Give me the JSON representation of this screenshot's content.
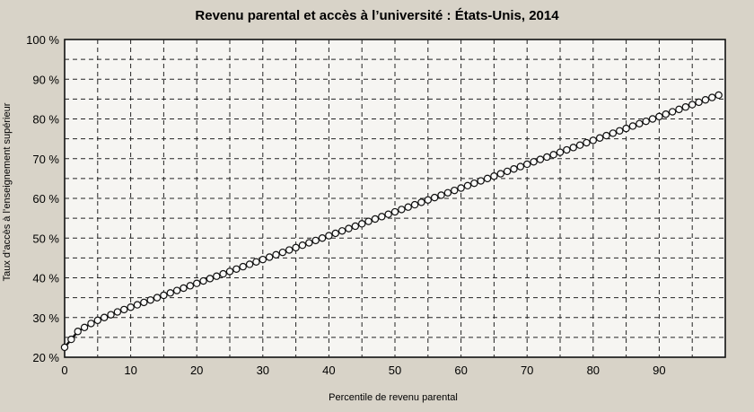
{
  "chart_data": {
    "type": "line",
    "title": "Revenu parental et accès à l’université : États-Unis, 2014",
    "xlabel": "Percentile de revenu parental",
    "ylabel": "Taux d’accès à l’enseignement supérieur",
    "xlim": [
      0,
      100
    ],
    "ylim": [
      20,
      100
    ],
    "x_ticks": [
      {
        "value": 0,
        "label": "0"
      },
      {
        "value": 10,
        "label": "10"
      },
      {
        "value": 20,
        "label": "20"
      },
      {
        "value": 30,
        "label": "30"
      },
      {
        "value": 40,
        "label": "40"
      },
      {
        "value": 50,
        "label": "50"
      },
      {
        "value": 60,
        "label": "60"
      },
      {
        "value": 70,
        "label": "70"
      },
      {
        "value": 80,
        "label": "80"
      },
      {
        "value": 90,
        "label": "90"
      }
    ],
    "y_ticks": [
      {
        "value": 20,
        "label": "20 %"
      },
      {
        "value": 30,
        "label": "30 %"
      },
      {
        "value": 40,
        "label": "40 %"
      },
      {
        "value": 50,
        "label": "50 %"
      },
      {
        "value": 60,
        "label": "60 %"
      },
      {
        "value": 70,
        "label": "70 %"
      },
      {
        "value": 80,
        "label": "80 %"
      },
      {
        "value": 90,
        "label": "90 %"
      },
      {
        "value": 100,
        "label": "100 %"
      }
    ],
    "grid": true,
    "series": [
      {
        "markers": "hollow-circle",
        "x": [
          0,
          1,
          2,
          3,
          4,
          5,
          6,
          7,
          8,
          9,
          10,
          11,
          12,
          13,
          14,
          15,
          16,
          17,
          18,
          19,
          20,
          21,
          22,
          23,
          24,
          25,
          26,
          27,
          28,
          29,
          30,
          31,
          32,
          33,
          34,
          35,
          36,
          37,
          38,
          39,
          40,
          41,
          42,
          43,
          44,
          45,
          46,
          47,
          48,
          49,
          50,
          51,
          52,
          53,
          54,
          55,
          56,
          57,
          58,
          59,
          60,
          61,
          62,
          63,
          64,
          65,
          66,
          67,
          68,
          69,
          70,
          71,
          72,
          73,
          74,
          75,
          76,
          77,
          78,
          79,
          80,
          81,
          82,
          83,
          84,
          85,
          86,
          87,
          88,
          89,
          90,
          91,
          92,
          93,
          94,
          95,
          96,
          97,
          98,
          99
        ],
        "y": [
          22.5,
          24.5,
          26.5,
          27.5,
          28.5,
          29.3,
          30,
          30.7,
          31.4,
          32,
          32.6,
          33.2,
          33.8,
          34.4,
          35,
          35.6,
          36.2,
          36.8,
          37.4,
          38,
          38.6,
          39.2,
          39.8,
          40.4,
          41,
          41.6,
          42.2,
          42.8,
          43.4,
          44,
          44.6,
          45.2,
          45.8,
          46.4,
          47,
          47.6,
          48.2,
          48.8,
          49.4,
          50,
          50.6,
          51.2,
          51.8,
          52.4,
          53,
          53.6,
          54.2,
          54.8,
          55.4,
          56,
          56.6,
          57.2,
          57.8,
          58.4,
          59,
          59.6,
          60.2,
          60.8,
          61.4,
          62,
          62.6,
          63.2,
          63.8,
          64.4,
          65,
          65.6,
          66.2,
          66.8,
          67.4,
          68,
          68.6,
          69.2,
          69.8,
          70.4,
          71,
          71.6,
          72.2,
          72.8,
          73.4,
          74,
          74.6,
          75.2,
          75.8,
          76.4,
          77,
          77.6,
          78.2,
          78.8,
          79.4,
          80,
          80.6,
          81.2,
          81.8,
          82.4,
          83,
          83.6,
          84.2,
          84.8,
          85.4,
          86
        ]
      }
    ]
  }
}
